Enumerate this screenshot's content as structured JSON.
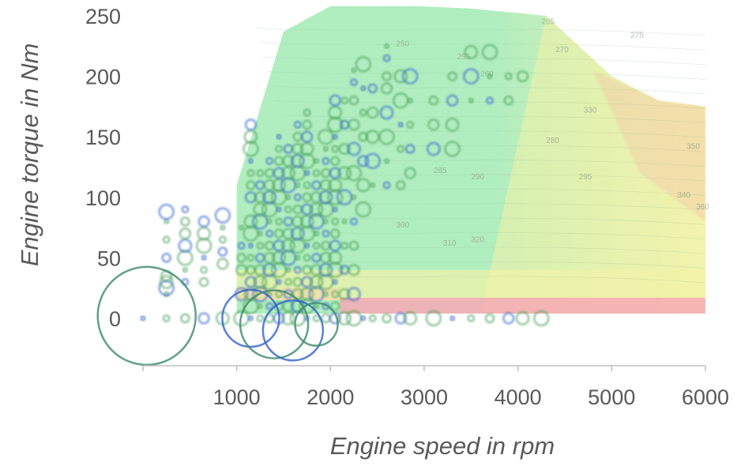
{
  "chart_data": {
    "type": "scatter",
    "title": "",
    "xlabel": "Engine speed in rpm",
    "ylabel": "Engine torque in Nm",
    "xlim": [
      0,
      6000
    ],
    "ylim": [
      -40,
      255
    ],
    "x_ticks": [
      "1000",
      "2000",
      "3000",
      "4000",
      "5000",
      "6000"
    ],
    "y_ticks": [
      "0",
      "50",
      "100",
      "150",
      "200",
      "250"
    ],
    "grid": false,
    "legend": "none",
    "background_map": {
      "kind": "efficiency contour map",
      "colors": {
        "high": "#a8ecb8",
        "mid": "#f2f2a8",
        "low": "#f7a9b4"
      },
      "contour_labels": [
        "250",
        "255",
        "260",
        "265",
        "270",
        "275",
        "280",
        "285",
        "290",
        "295",
        "300",
        "310",
        "320",
        "330",
        "340",
        "350",
        "360"
      ],
      "outline_x": [
        1000,
        1500,
        2000,
        2900,
        3500,
        4300,
        5000,
        5500,
        6000
      ],
      "outline_y": [
        110,
        237,
        258,
        258,
        256,
        250,
        200,
        180,
        175
      ]
    },
    "series": [
      {
        "color_main": "#2f5fd0",
        "color_alt": "#4aa05a",
        "columns": [
          {
            "x": 0,
            "y": [
              0
            ]
          },
          {
            "x": 250,
            "y": [
              0,
              20,
              25,
              30,
              35,
              50,
              65,
              80,
              88
            ]
          },
          {
            "x": 450,
            "y": [
              0,
              30,
              40,
              50,
              60,
              70,
              80,
              90
            ]
          },
          {
            "x": 650,
            "y": [
              0,
              30,
              40,
              50,
              60,
              70,
              80
            ]
          },
          {
            "x": 850,
            "y": [
              0,
              45,
              55,
              65,
              75,
              85
            ]
          },
          {
            "x": 1050,
            "y": [
              0,
              20,
              40,
              50,
              60,
              75
            ]
          },
          {
            "x": 1150,
            "y": [
              0,
              10,
              20,
              30,
              40,
              50,
              60,
              70,
              80,
              100,
              110,
              120,
              130,
              140,
              150,
              160
            ]
          },
          {
            "x": 1250,
            "y": [
              0,
              10,
              20,
              30,
              40,
              50,
              60,
              70,
              80,
              90,
              100,
              110,
              120
            ]
          },
          {
            "x": 1350,
            "y": [
              0,
              10,
              20,
              30,
              40,
              50,
              60,
              70,
              80,
              90,
              100,
              110,
              120,
              130
            ]
          },
          {
            "x": 1450,
            "y": [
              0,
              10,
              20,
              30,
              40,
              50,
              60,
              70,
              80,
              90,
              100,
              110,
              120,
              130,
              140,
              150
            ]
          },
          {
            "x": 1550,
            "y": [
              0,
              10,
              20,
              30,
              40,
              50,
              60,
              70,
              80,
              90,
              100,
              110,
              120,
              130,
              140
            ]
          },
          {
            "x": 1650,
            "y": [
              0,
              10,
              20,
              30,
              40,
              50,
              60,
              70,
              80,
              90,
              100,
              110,
              120,
              130,
              140,
              150,
              160
            ]
          },
          {
            "x": 1750,
            "y": [
              0,
              10,
              20,
              30,
              40,
              50,
              60,
              70,
              80,
              90,
              100,
              110,
              120,
              130,
              140,
              150,
              160,
              170
            ]
          },
          {
            "x": 1850,
            "y": [
              0,
              10,
              20,
              30,
              40,
              50,
              60,
              70,
              80,
              90,
              100,
              110,
              120,
              130
            ]
          },
          {
            "x": 1950,
            "y": [
              0,
              10,
              20,
              30,
              40,
              50,
              60,
              70,
              80,
              90,
              100,
              110,
              120,
              130,
              140,
              150
            ]
          },
          {
            "x": 2050,
            "y": [
              0,
              10,
              20,
              30,
              40,
              50,
              60,
              70,
              80,
              90,
              100,
              110,
              120,
              130,
              140,
              150,
              160,
              170,
              180
            ]
          },
          {
            "x": 2150,
            "y": [
              0,
              20,
              40,
              60,
              80,
              100,
              120,
              140,
              160,
              180
            ]
          },
          {
            "x": 2250,
            "y": [
              0,
              20,
              40,
              60,
              80,
              100,
              120,
              140,
              160,
              180,
              195,
              205
            ]
          },
          {
            "x": 2350,
            "y": [
              0,
              90,
              110,
              130,
              150,
              170,
              190,
              210
            ]
          },
          {
            "x": 2450,
            "y": [
              0,
              110,
              130,
              150,
              170,
              190
            ]
          },
          {
            "x": 2600,
            "y": [
              0,
              110,
              130,
              150,
              170,
              190,
              200,
              215,
              225
            ]
          },
          {
            "x": 2750,
            "y": [
              0,
              110,
              140,
              160,
              180,
              200
            ]
          },
          {
            "x": 2850,
            "y": [
              0,
              120,
              140,
              160,
              180,
              200
            ]
          },
          {
            "x": 3100,
            "y": [
              0,
              140,
              160,
              180
            ]
          },
          {
            "x": 3300,
            "y": [
              0,
              140,
              160,
              180,
              200
            ]
          },
          {
            "x": 3500,
            "y": [
              0,
              180,
              200,
              220
            ]
          },
          {
            "x": 3700,
            "y": [
              0,
              180,
              200,
              220
            ]
          },
          {
            "x": 3900,
            "y": [
              0,
              180,
              200
            ]
          },
          {
            "x": 4050,
            "y": [
              0,
              200
            ]
          },
          {
            "x": 4250,
            "y": [
              0
            ]
          }
        ],
        "large_markers": [
          {
            "x": 40,
            "y": 2,
            "r": 62
          },
          {
            "x": 1150,
            "y": 0,
            "r": 36
          },
          {
            "x": 1400,
            "y": -5,
            "r": 43
          },
          {
            "x": 1600,
            "y": -10,
            "r": 38
          },
          {
            "x": 1850,
            "y": -5,
            "r": 27
          }
        ]
      }
    ]
  }
}
